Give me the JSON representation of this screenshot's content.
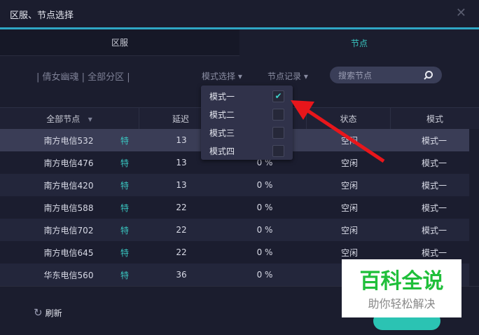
{
  "window": {
    "title": "区服、节点选择",
    "close_icon": "close-icon"
  },
  "tabs": [
    {
      "label": "区服",
      "active": false
    },
    {
      "label": "节点",
      "active": true
    }
  ],
  "filter": {
    "breadcrumb": "| 倩女幽魂 | 全部分区 |",
    "mode_select": "模式选择",
    "node_history": "节点记录",
    "search_placeholder": "搜索节点"
  },
  "table": {
    "headers": [
      "全部节点",
      "延迟",
      "",
      "状态",
      "模式"
    ],
    "rows": [
      {
        "name": "南方电信532",
        "tag": "特",
        "delay": "13",
        "loss": "0 %",
        "status": "空闲",
        "mode": "模式一"
      },
      {
        "name": "南方电信476",
        "tag": "特",
        "delay": "13",
        "loss": "0 %",
        "status": "空闲",
        "mode": "模式一"
      },
      {
        "name": "南方电信420",
        "tag": "特",
        "delay": "13",
        "loss": "0 %",
        "status": "空闲",
        "mode": "模式一"
      },
      {
        "name": "南方电信588",
        "tag": "特",
        "delay": "22",
        "loss": "0 %",
        "status": "空闲",
        "mode": "模式一"
      },
      {
        "name": "南方电信702",
        "tag": "特",
        "delay": "22",
        "loss": "0 %",
        "status": "空闲",
        "mode": "模式一"
      },
      {
        "name": "南方电信645",
        "tag": "特",
        "delay": "22",
        "loss": "0 %",
        "status": "空闲",
        "mode": "模式一"
      },
      {
        "name": "华东电信560",
        "tag": "特",
        "delay": "36",
        "loss": "0 %",
        "status": "",
        "mode": ""
      }
    ]
  },
  "mode_menu": [
    {
      "label": "模式一",
      "checked": true
    },
    {
      "label": "模式二",
      "checked": false
    },
    {
      "label": "模式三",
      "checked": false
    },
    {
      "label": "模式四",
      "checked": false
    }
  ],
  "footer": {
    "refresh": "刷新"
  },
  "watermark": {
    "title": "百科全说",
    "subtitle": "助你轻松解决"
  },
  "colors": {
    "accent": "#39c6c0",
    "arrow": "#e8161b",
    "watermark_green": "#1fbf3a"
  }
}
